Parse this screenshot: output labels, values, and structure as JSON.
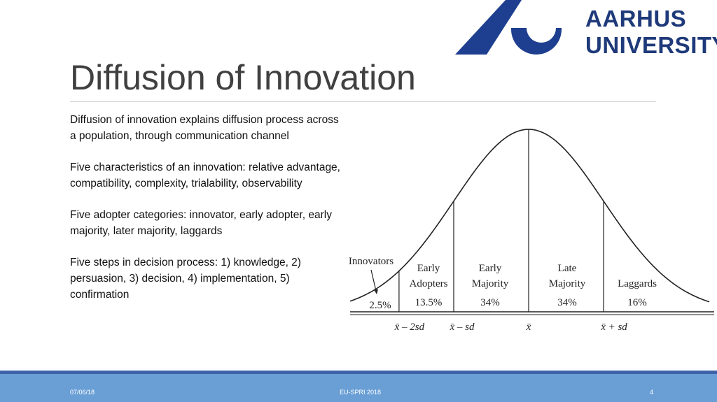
{
  "logo": {
    "line1": "AARHUS",
    "line2": "UNIVERSITY"
  },
  "title": "Diffusion of Innovation",
  "body": {
    "paragraphs": [
      "Diffusion of innovation explains diffusion process across a population, through communication channel",
      "Five characteristics of an innovation:  relative advantage, compatibility, complexity, trialability, observability",
      "Five adopter categories: innovator, early adopter, early majority, later majority, laggards",
      "Five steps in decision process: 1) knowledge, 2) persuasion, 3) decision, 4) implementation, 5) confirmation"
    ]
  },
  "figure": {
    "groups": [
      {
        "label": [
          "Innovators"
        ],
        "share": "2.5%"
      },
      {
        "label": [
          "Early",
          "Adopters"
        ],
        "share": "13.5%"
      },
      {
        "label": [
          "Early",
          "Majority"
        ],
        "share": "34%"
      },
      {
        "label": [
          "Late",
          "Majority"
        ],
        "share": "34%"
      },
      {
        "label": [
          "Laggards"
        ],
        "share": "16%"
      }
    ],
    "axis_labels": [
      "x̄ – 2sd",
      "x̄ – sd",
      "x̄",
      "x̄ + sd"
    ]
  },
  "footer": {
    "date": "07/06/18",
    "event": "EU-SPRI 2018",
    "page": "4"
  }
}
